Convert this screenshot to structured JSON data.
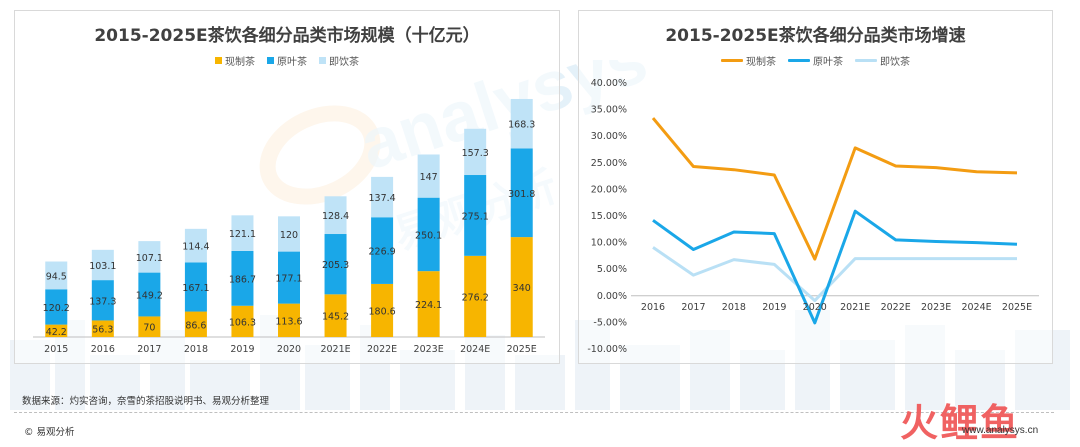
{
  "colors": {
    "xianzhi": "#f7b500",
    "yuanye": "#1aa7e8",
    "jiyin": "#bfe3f7"
  },
  "source_text": "数据来源：灼实咨询，奈雪的茶招股说明书、易观分析整理",
  "footer_text": "© 易观分析",
  "watermark_text": "火鲤鱼",
  "watermark_url": "www.analysys.cn",
  "logo_text": "analysys",
  "logo_cn_text": "易观分析",
  "chart_data": [
    {
      "type": "bar",
      "stacked": true,
      "title": "2015-2025E茶饮各细分品类市场规模（十亿元）",
      "categories": [
        "2015",
        "2016",
        "2017",
        "2018",
        "2019",
        "2020",
        "2021E",
        "2022E",
        "2023E",
        "2024E",
        "2025E"
      ],
      "series": [
        {
          "name": "现制茶",
          "color": "#f7b500",
          "values": [
            42.2,
            56.3,
            70,
            86.6,
            106.3,
            113.6,
            145.2,
            180.6,
            224.1,
            276.2,
            340
          ]
        },
        {
          "name": "原叶茶",
          "color": "#1aa7e8",
          "values": [
            120.2,
            137.3,
            149.2,
            167.1,
            186.7,
            177.1,
            205.3,
            226.9,
            250.1,
            275.1,
            301.8
          ]
        },
        {
          "name": "即饮茶",
          "color": "#bfe3f7",
          "values": [
            94.5,
            103.1,
            107.1,
            114.4,
            121.1,
            120,
            128.4,
            137.4,
            147,
            157.3,
            168.3
          ]
        }
      ],
      "legend": "top-center",
      "ylim": [
        0,
        810
      ],
      "grid": false
    },
    {
      "type": "line",
      "title": "2015-2025E茶饮各细分品类市场增速",
      "categories": [
        "2016",
        "2017",
        "2018",
        "2019",
        "2020",
        "2021E",
        "2022E",
        "2023E",
        "2024E",
        "2025E"
      ],
      "series": [
        {
          "name": "现制茶",
          "color": "#f39c12",
          "values": [
            33.4,
            24.3,
            23.7,
            22.7,
            6.9,
            27.8,
            24.4,
            24.1,
            23.3,
            23.1
          ]
        },
        {
          "name": "原叶茶",
          "color": "#1aa7e8",
          "values": [
            14.2,
            8.7,
            12.0,
            11.7,
            -5.1,
            15.9,
            10.5,
            10.2,
            10.0,
            9.7
          ]
        },
        {
          "name": "即饮茶",
          "color": "#b9e0f5",
          "values": [
            9.1,
            3.9,
            6.8,
            5.9,
            -0.9,
            7.0,
            7.0,
            7.0,
            7.0,
            7.0
          ]
        }
      ],
      "y_ticks": [
        "40.00%",
        "35.00%",
        "30.00%",
        "25.00%",
        "20.00%",
        "15.00%",
        "10.00%",
        "5.00%",
        "0.00%",
        "-5.00%",
        "-10.00%"
      ],
      "ylim": [
        -10,
        40
      ],
      "legend": "top-center",
      "grid": false
    }
  ]
}
